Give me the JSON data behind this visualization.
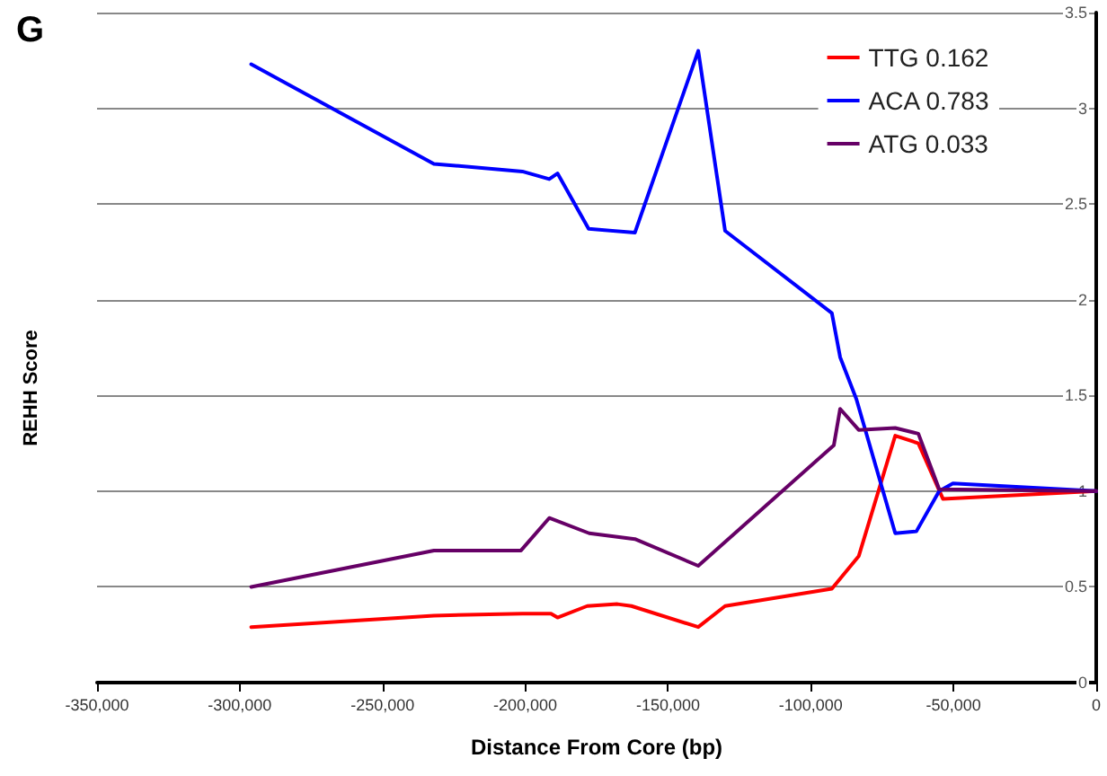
{
  "chart_data": {
    "type": "line",
    "title": "G",
    "xlabel": "Distance From Core (bp)",
    "ylabel": "REHH Score",
    "xlim": [
      -350000,
      0
    ],
    "xticks": [
      {
        "value": -350000,
        "label": "-350,000"
      },
      {
        "value": -300000,
        "label": "-300,000"
      },
      {
        "value": -250000,
        "label": "-250,000"
      },
      {
        "value": -200000,
        "label": "-200,000"
      },
      {
        "value": -150000,
        "label": "-150,000"
      },
      {
        "value": -100000,
        "label": "-100,000"
      },
      {
        "value": -50000,
        "label": "-50,000"
      },
      0
    ],
    "ylim": [
      0,
      3.5
    ],
    "yticks": [
      0,
      0.5,
      1,
      1.5,
      2,
      2.5,
      3,
      3.5
    ],
    "grid": "y",
    "legend": "top right",
    "marker": "none",
    "line_style": "solid",
    "series": [
      {
        "name": "TTG 0.162",
        "color": "#ff0000",
        "x": [
          -296000,
          -232000,
          -201000,
          -191000,
          -188700,
          -178300,
          -167700,
          -162800,
          -139400,
          -130000,
          -92600,
          -83200,
          -70400,
          -62300,
          -53700,
          0
        ],
        "values": [
          0.29,
          0.35,
          0.36,
          0.36,
          0.34,
          0.4,
          0.41,
          0.4,
          0.29,
          0.4,
          0.49,
          0.66,
          1.29,
          1.25,
          0.96,
          1.0
        ]
      },
      {
        "name": "ACA 0.783",
        "color": "#0000ff",
        "x": [
          -296000,
          -232000,
          -201000,
          -191600,
          -188700,
          -177800,
          -161600,
          -139400,
          -130000,
          -92600,
          -89700,
          -84000,
          -70400,
          -63000,
          -55000,
          -50200,
          0
        ],
        "values": [
          3.23,
          2.71,
          2.67,
          2.63,
          2.66,
          2.37,
          2.35,
          3.3,
          2.36,
          1.93,
          1.7,
          1.48,
          0.78,
          0.79,
          1.0,
          1.04,
          1.0
        ]
      },
      {
        "name": "ATG 0.033",
        "color": "#660066",
        "x": [
          -296000,
          -232000,
          -201500,
          -191600,
          -177600,
          -161600,
          -139400,
          -91900,
          -89700,
          -83200,
          -70400,
          -62300,
          -55000,
          0
        ],
        "values": [
          0.5,
          0.69,
          0.69,
          0.86,
          0.78,
          0.75,
          0.61,
          1.24,
          1.43,
          1.32,
          1.33,
          1.3,
          1.01,
          1.0
        ]
      }
    ]
  }
}
